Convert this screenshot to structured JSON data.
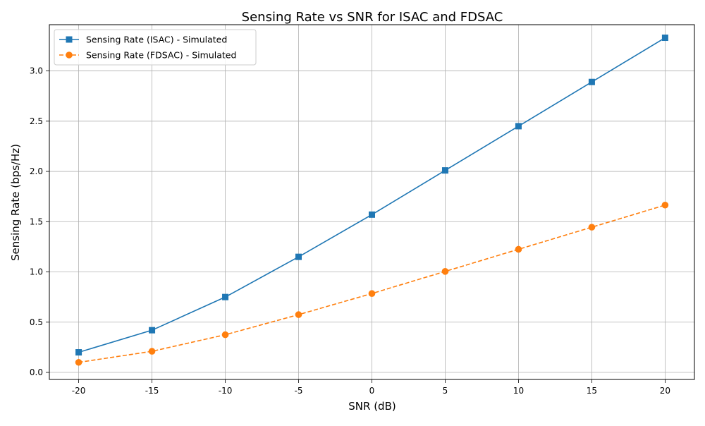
{
  "chart_data": {
    "type": "line",
    "title": "Sensing Rate vs SNR for ISAC and FDSAC",
    "xlabel": "SNR (dB)",
    "ylabel": "Sensing Rate (bps/Hz)",
    "x": [
      -20,
      -15,
      -10,
      -5,
      0,
      5,
      10,
      15,
      20
    ],
    "xlim": [
      -22,
      22
    ],
    "ylim": [
      -0.07,
      3.46
    ],
    "xticks": [
      -20,
      -15,
      -10,
      -5,
      0,
      5,
      10,
      15,
      20
    ],
    "yticks": [
      0.0,
      0.5,
      1.0,
      1.5,
      2.0,
      2.5,
      3.0
    ],
    "xtick_labels": [
      "-20",
      "-15",
      "-10",
      "-5",
      "0",
      "5",
      "10",
      "15",
      "20"
    ],
    "ytick_labels": [
      "0.0",
      "0.5",
      "1.0",
      "1.5",
      "2.0",
      "2.5",
      "3.0"
    ],
    "grid": true,
    "legend_position": "upper-left",
    "series": [
      {
        "name": "Sensing Rate (ISAC) - Simulated",
        "values": [
          0.2,
          0.42,
          0.75,
          1.15,
          1.57,
          2.01,
          2.45,
          2.89,
          3.33
        ],
        "color": "#1f77b4",
        "marker": "square",
        "linestyle": "solid"
      },
      {
        "name": "Sensing Rate (FDSAC) - Simulated",
        "values": [
          0.1,
          0.21,
          0.375,
          0.575,
          0.785,
          1.005,
          1.225,
          1.445,
          1.665
        ],
        "color": "#ff7f0e",
        "marker": "circle",
        "linestyle": "dashed"
      }
    ]
  }
}
